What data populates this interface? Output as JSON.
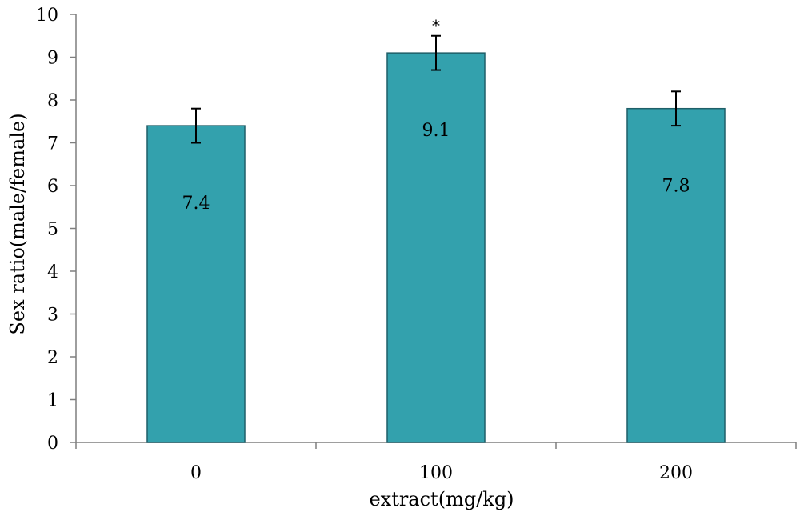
{
  "chart_data": {
    "type": "bar",
    "categories": [
      "0",
      "100",
      "200"
    ],
    "values": [
      7.4,
      9.1,
      7.8
    ],
    "errors": [
      0.4,
      0.4,
      0.4
    ],
    "data_labels": [
      "7.4",
      "9.1",
      "7.8"
    ],
    "annotations": [
      "",
      "*",
      ""
    ],
    "xlabel": "extract(mg/kg)",
    "ylabel": "Sex ratio(male/female)",
    "ylim": [
      0,
      10
    ],
    "yticks": [
      "0",
      "1",
      "2",
      "3",
      "4",
      "5",
      "6",
      "7",
      "8",
      "9",
      "10"
    ],
    "grid": false,
    "bar_color": "#33a1ad",
    "bar_edge_color": "#1f5f68"
  }
}
